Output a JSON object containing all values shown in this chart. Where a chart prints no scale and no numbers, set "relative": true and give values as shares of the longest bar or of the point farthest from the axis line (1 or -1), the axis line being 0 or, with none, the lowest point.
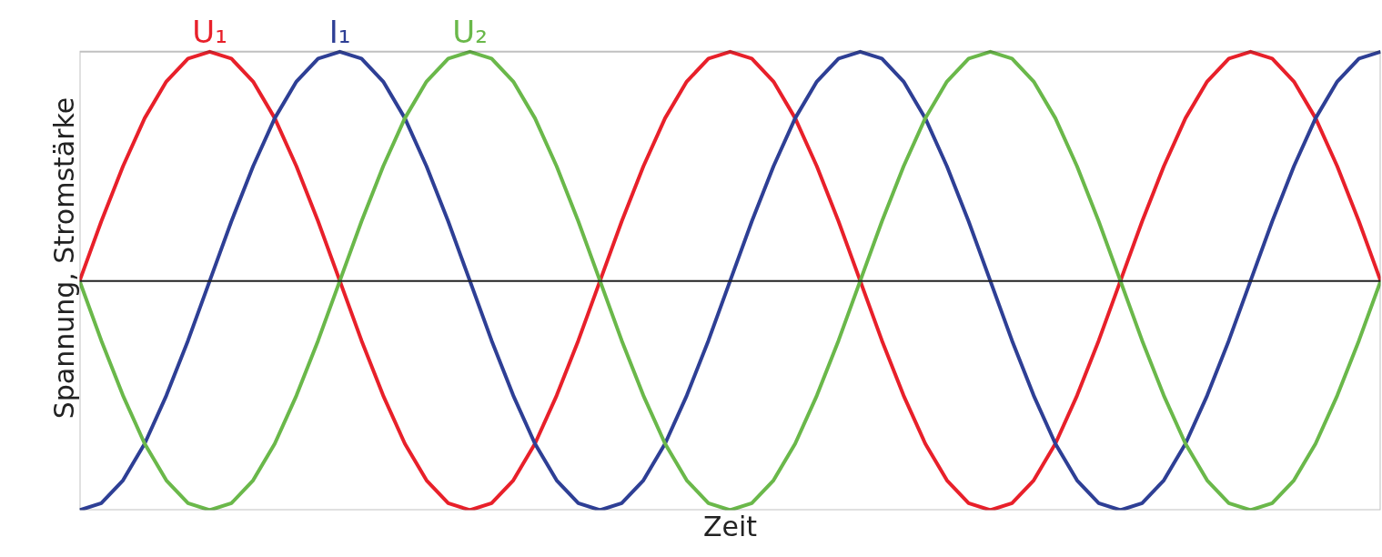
{
  "chart_data": {
    "type": "line",
    "xlabel": "Zeit",
    "ylabel": "Spannung, Stromstärke",
    "relative": true,
    "line_style": "solid",
    "categories": [
      null,
      null,
      null,
      null,
      null,
      null,
      null,
      null,
      null,
      null,
      null,
      null,
      null,
      null,
      null,
      null,
      null,
      null,
      null,
      null,
      null,
      null,
      null,
      null,
      null,
      null,
      null,
      null,
      null,
      null,
      null,
      null,
      null,
      null,
      null,
      null,
      null,
      null,
      null,
      null,
      null,
      null,
      null,
      null,
      null,
      null,
      null,
      null,
      null,
      null,
      null,
      null,
      null,
      null,
      null,
      null,
      null,
      null,
      null,
      null,
      null
    ],
    "series": [
      {
        "name": "U₁",
        "color": "#e8202a",
        "values": [
          0,
          0.26,
          0.5,
          0.71,
          0.87,
          0.97,
          1,
          0.97,
          0.87,
          0.71,
          0.5,
          0.26,
          0,
          -0.26,
          -0.5,
          -0.71,
          -0.87,
          -0.97,
          -1,
          -0.97,
          -0.87,
          -0.71,
          -0.5,
          -0.26,
          0,
          0.26,
          0.5,
          0.71,
          0.87,
          0.97,
          1,
          0.97,
          0.87,
          0.71,
          0.5,
          0.26,
          0,
          -0.26,
          -0.5,
          -0.71,
          -0.87,
          -0.97,
          -1,
          -0.97,
          -0.87,
          -0.71,
          -0.5,
          -0.26,
          0,
          0.26,
          0.5,
          0.71,
          0.87,
          0.97,
          1,
          0.97,
          0.87,
          0.71,
          0.5,
          0.26,
          0
        ]
      },
      {
        "name": "I₁",
        "color": "#2e3f95",
        "values": [
          -1,
          -0.97,
          -0.87,
          -0.71,
          -0.5,
          -0.26,
          0,
          0.26,
          0.5,
          0.71,
          0.87,
          0.97,
          1,
          0.97,
          0.87,
          0.71,
          0.5,
          0.26,
          0,
          -0.26,
          -0.5,
          -0.71,
          -0.87,
          -0.97,
          -1,
          -0.97,
          -0.87,
          -0.71,
          -0.5,
          -0.26,
          0,
          0.26,
          0.5,
          0.71,
          0.87,
          0.97,
          1,
          0.97,
          0.87,
          0.71,
          0.5,
          0.26,
          0,
          -0.26,
          -0.5,
          -0.71,
          -0.87,
          -0.97,
          -1,
          -0.97,
          -0.87,
          -0.71,
          -0.5,
          -0.26,
          0,
          0.26,
          0.5,
          0.71,
          0.87,
          0.97,
          1
        ]
      },
      {
        "name": "U₂",
        "color": "#6ab84a",
        "values": [
          0,
          -0.26,
          -0.5,
          -0.71,
          -0.87,
          -0.97,
          -1,
          -0.97,
          -0.87,
          -0.71,
          -0.5,
          -0.26,
          0,
          0.26,
          0.5,
          0.71,
          0.87,
          0.97,
          1,
          0.97,
          0.87,
          0.71,
          0.5,
          0.26,
          0,
          -0.26,
          -0.5,
          -0.71,
          -0.87,
          -0.97,
          -1,
          -0.97,
          -0.87,
          -0.71,
          -0.5,
          -0.26,
          0,
          0.26,
          0.5,
          0.71,
          0.87,
          0.97,
          1,
          0.97,
          0.87,
          0.71,
          0.5,
          0.26,
          0,
          -0.26,
          -0.5,
          -0.71,
          -0.87,
          -0.97,
          -1,
          -0.97,
          -0.87,
          -0.71,
          -0.5,
          -0.26,
          0
        ]
      }
    ]
  }
}
